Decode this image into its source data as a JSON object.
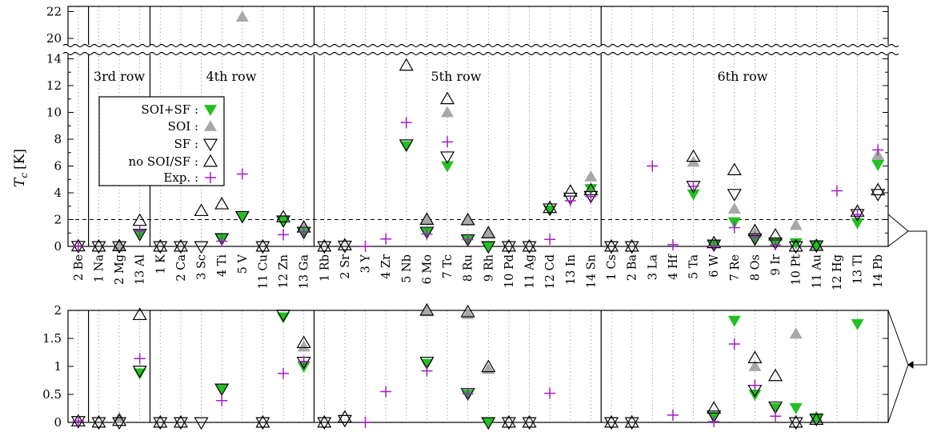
{
  "chart_data": {
    "type": "scatter",
    "ylabel": "T_c [K]",
    "ylabel_main": "T",
    "ylabel_sub": "c",
    "ylabel_unit": "[K]",
    "top_y_ticks": [
      "0",
      "2",
      "4",
      "6",
      "8",
      "10",
      "12",
      "14",
      "20",
      "22"
    ],
    "bottom_y_ticks": [
      "0",
      "0.5",
      "1",
      "1.5",
      "2"
    ],
    "threshold_line": 2,
    "row_labels": [
      "3rd row",
      "4th row",
      "5th row",
      "6th row"
    ],
    "elements": [
      "2 Be",
      "1 Na",
      "2 Mg",
      "13 Al",
      "1 K",
      "2 Ca",
      "3 Sc",
      "4 Ti",
      "5 V",
      "11 Cu",
      "12 Zn",
      "13 Ga",
      "1 Rb",
      "2 Sr",
      "3 Y",
      "4 Zr",
      "5 Nb",
      "6 Mo",
      "7 Tc",
      "8 Ru",
      "9 Rh",
      "10 Pd",
      "11 Ag",
      "12 Cd",
      "13 In",
      "14 Sn",
      "1 Cs",
      "2 Ba",
      "3 La",
      "4 Hf",
      "5 Ta",
      "6 W",
      "7 Re",
      "8 Os",
      "9 Ir",
      "10 Pt",
      "11 Au",
      "12 Hg",
      "13 Tl",
      "14 Pb"
    ],
    "legend": [
      {
        "key": "soisf",
        "label": "SOI+SF :"
      },
      {
        "key": "soi",
        "label": "SOI :"
      },
      {
        "key": "sf",
        "label": "SF :"
      },
      {
        "key": "none",
        "label": "no SOI/SF :"
      },
      {
        "key": "exp",
        "label": "Exp. :"
      }
    ],
    "series": [
      {
        "key": "none",
        "color": "#000000",
        "values": [
          0.02,
          0.0,
          0.03,
          1.92,
          0.0,
          0.0,
          2.65,
          3.15,
          null,
          0.0,
          2.18,
          1.42,
          0.0,
          0.09,
          null,
          null,
          13.5,
          2.0,
          11.0,
          1.97,
          0.99,
          0.0,
          0.0,
          2.88,
          4.1,
          4.2,
          0.0,
          0.0,
          null,
          null,
          6.7,
          0.25,
          5.7,
          1.15,
          0.83,
          0.0,
          0.05,
          null,
          2.6,
          4.2
        ]
      },
      {
        "key": "soi",
        "color": "#a8a8a8",
        "values": [
          null,
          null,
          0.08,
          null,
          null,
          null,
          null,
          null,
          21.6,
          null,
          null,
          1.35,
          null,
          null,
          null,
          null,
          null,
          1.98,
          10.0,
          1.93,
          0.95,
          null,
          null,
          null,
          null,
          5.2,
          null,
          null,
          null,
          null,
          6.3,
          null,
          2.8,
          1.0,
          null,
          1.58,
          0.1,
          null,
          null,
          6.8
        ]
      },
      {
        "key": "sf",
        "color": "#000000",
        "values": [
          0.02,
          0.0,
          0.0,
          0.92,
          0.0,
          0.0,
          0.0,
          0.6,
          2.25,
          0.0,
          1.92,
          1.08,
          0.0,
          0.04,
          null,
          null,
          7.6,
          1.08,
          6.7,
          0.52,
          0.0,
          0.0,
          0.0,
          2.82,
          3.62,
          3.75,
          0.0,
          0.0,
          null,
          null,
          4.5,
          0.12,
          3.9,
          0.58,
          0.28,
          0.0,
          0.06,
          null,
          2.4,
          3.9
        ]
      },
      {
        "key": "soisf",
        "color": "#22c022",
        "values": [
          null,
          null,
          null,
          0.88,
          null,
          null,
          null,
          0.6,
          2.2,
          null,
          1.88,
          1.0,
          null,
          null,
          null,
          null,
          7.5,
          1.05,
          6.0,
          0.5,
          0.0,
          null,
          null,
          2.7,
          null,
          4.3,
          null,
          null,
          null,
          null,
          3.9,
          0.1,
          1.82,
          0.5,
          0.26,
          0.26,
          0.08,
          null,
          1.76,
          6.1
        ]
      },
      {
        "key": "exp",
        "color": "#a020c0",
        "values": [
          0.026,
          null,
          null,
          1.14,
          null,
          null,
          null,
          0.39,
          5.4,
          null,
          0.875,
          1.09,
          null,
          null,
          0.0,
          0.55,
          9.25,
          0.92,
          7.8,
          0.51,
          null,
          null,
          null,
          0.52,
          3.4,
          3.72,
          null,
          null,
          6.0,
          0.13,
          4.48,
          0.015,
          1.4,
          0.66,
          0.11,
          null,
          null,
          4.15,
          2.39,
          7.2
        ]
      }
    ]
  }
}
